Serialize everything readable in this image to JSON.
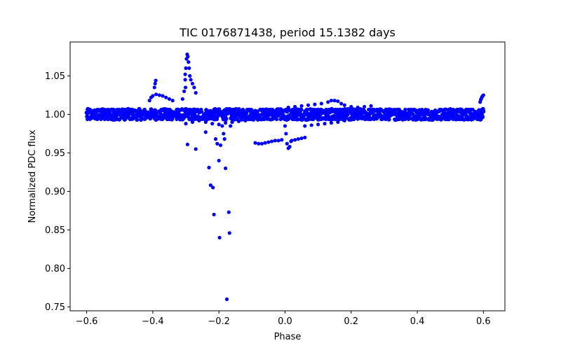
{
  "chart_data": {
    "type": "scatter",
    "title": "TIC 0176871438, period 15.1382 days",
    "xlabel": "Phase",
    "ylabel": "Normalized PDC flux",
    "xlim": [
      -0.65,
      0.665
    ],
    "ylim": [
      0.745,
      1.094
    ],
    "xticks": [
      -0.6,
      -0.4,
      -0.2,
      0.0,
      0.2,
      0.4,
      0.6
    ],
    "xtick_labels": [
      "−0.6",
      "−0.4",
      "−0.2",
      "0.0",
      "0.2",
      "0.4",
      "0.6"
    ],
    "yticks": [
      0.75,
      0.8,
      0.85,
      0.9,
      0.95,
      1.0,
      1.05
    ],
    "ytick_labels": [
      "0.75",
      "0.80",
      "0.85",
      "0.90",
      "0.95",
      "1.00",
      "1.05"
    ],
    "marker_color": "#0000ff",
    "grid": false,
    "series": [
      {
        "name": "main band",
        "x_range": [
          -0.6,
          0.6
        ],
        "y_center": 1.0,
        "y_spread": 0.007
      },
      {
        "name": "transit dip",
        "x_range": [
          0.0,
          0.02
        ],
        "points": [
          [
            0.0,
            0.985
          ],
          [
            0.003,
            0.975
          ],
          [
            0.006,
            0.962
          ],
          [
            0.01,
            0.956
          ],
          [
            0.014,
            0.958
          ],
          [
            0.018,
            0.965
          ]
        ]
      },
      {
        "name": "left flare",
        "points": [
          [
            -0.41,
            1.018
          ],
          [
            -0.405,
            1.022
          ],
          [
            -0.4,
            1.024
          ],
          [
            -0.39,
            1.026
          ],
          [
            -0.38,
            1.025
          ],
          [
            -0.37,
            1.024
          ],
          [
            -0.36,
            1.022
          ],
          [
            -0.35,
            1.02
          ],
          [
            -0.34,
            1.018
          ],
          [
            -0.395,
            1.035
          ],
          [
            -0.393,
            1.04
          ],
          [
            -0.391,
            1.044
          ]
        ]
      },
      {
        "name": "peak flare",
        "points": [
          [
            -0.31,
            1.02
          ],
          [
            -0.305,
            1.03
          ],
          [
            -0.302,
            1.045
          ],
          [
            -0.3,
            1.06
          ],
          [
            -0.298,
            1.072
          ],
          [
            -0.296,
            1.078
          ],
          [
            -0.294,
            1.075
          ],
          [
            -0.292,
            1.068
          ],
          [
            -0.29,
            1.06
          ],
          [
            -0.288,
            1.05
          ],
          [
            -0.285,
            1.045
          ],
          [
            -0.28,
            1.04
          ],
          [
            -0.275,
            1.035
          ],
          [
            -0.27,
            1.028
          ],
          [
            -0.302,
            1.052
          ],
          [
            -0.301,
            1.035
          ]
        ]
      },
      {
        "name": "scattered low points",
        "points": [
          [
            -0.295,
            0.961
          ],
          [
            -0.27,
            0.955
          ],
          [
            -0.24,
            0.977
          ],
          [
            -0.23,
            0.931
          ],
          [
            -0.225,
            0.908
          ],
          [
            -0.218,
            0.905
          ],
          [
            -0.215,
            0.87
          ],
          [
            -0.21,
            0.968
          ],
          [
            -0.205,
            0.962
          ],
          [
            -0.2,
            0.94
          ],
          [
            -0.198,
            0.84
          ],
          [
            -0.195,
            0.96
          ],
          [
            -0.19,
            0.985
          ],
          [
            -0.186,
            0.975
          ],
          [
            -0.183,
            0.968
          ],
          [
            -0.18,
            0.93
          ],
          [
            -0.176,
            0.76
          ],
          [
            -0.17,
            0.873
          ],
          [
            -0.168,
            0.846
          ],
          [
            -0.165,
            0.985
          ],
          [
            -0.16,
            0.99
          ]
        ]
      },
      {
        "name": "offset track low",
        "points": [
          [
            -0.09,
            0.963
          ],
          [
            -0.08,
            0.962
          ],
          [
            -0.07,
            0.962
          ],
          [
            -0.06,
            0.963
          ],
          [
            -0.05,
            0.964
          ],
          [
            -0.04,
            0.965
          ],
          [
            -0.03,
            0.966
          ],
          [
            -0.02,
            0.966
          ],
          [
            -0.01,
            0.967
          ],
          [
            0.02,
            0.966
          ],
          [
            0.03,
            0.967
          ],
          [
            0.04,
            0.968
          ],
          [
            0.05,
            0.969
          ],
          [
            0.06,
            0.97
          ]
        ]
      },
      {
        "name": "offset track mid",
        "points": [
          [
            0.06,
            0.985
          ],
          [
            0.08,
            0.986
          ],
          [
            0.1,
            0.987
          ],
          [
            0.12,
            0.988
          ],
          [
            0.14,
            0.989
          ],
          [
            0.16,
            0.99
          ],
          [
            0.18,
            0.992
          ],
          [
            0.2,
            0.993
          ],
          [
            0.22,
            0.994
          ],
          [
            0.24,
            0.995
          ]
        ]
      },
      {
        "name": "offset track high",
        "points": [
          [
            0.01,
            1.009
          ],
          [
            0.03,
            1.01
          ],
          [
            0.05,
            1.011
          ],
          [
            0.07,
            1.012
          ],
          [
            0.09,
            1.013
          ],
          [
            0.11,
            1.014
          ],
          [
            0.13,
            1.016
          ],
          [
            0.14,
            1.018
          ],
          [
            0.15,
            1.018
          ],
          [
            0.16,
            1.017
          ],
          [
            0.17,
            1.014
          ],
          [
            0.18,
            1.012
          ],
          [
            0.2,
            1.01
          ],
          [
            0.22,
            1.009
          ],
          [
            0.24,
            1.01
          ],
          [
            0.26,
            1.011
          ]
        ]
      },
      {
        "name": "pre-dip track",
        "points": [
          [
            -0.3,
            0.988
          ],
          [
            -0.28,
            0.99
          ],
          [
            -0.26,
            0.992
          ],
          [
            -0.24,
            0.99
          ],
          [
            -0.22,
            0.988
          ],
          [
            -0.2,
            0.987
          ],
          [
            -0.18,
            0.989
          ],
          [
            -0.16,
            0.99
          ],
          [
            -0.14,
            0.991
          ],
          [
            -0.12,
            0.992
          ],
          [
            -0.1,
            0.994
          ],
          [
            -0.08,
            0.996
          ],
          [
            -0.06,
            1.0
          ],
          [
            -0.04,
            1.004
          ],
          [
            -0.02,
            1.007
          ]
        ]
      },
      {
        "name": "right edge rise",
        "points": [
          [
            0.59,
            1.016
          ],
          [
            0.592,
            1.019
          ],
          [
            0.594,
            1.021
          ],
          [
            0.596,
            1.023
          ],
          [
            0.598,
            1.024
          ],
          [
            0.6,
            1.025
          ]
        ]
      }
    ]
  }
}
